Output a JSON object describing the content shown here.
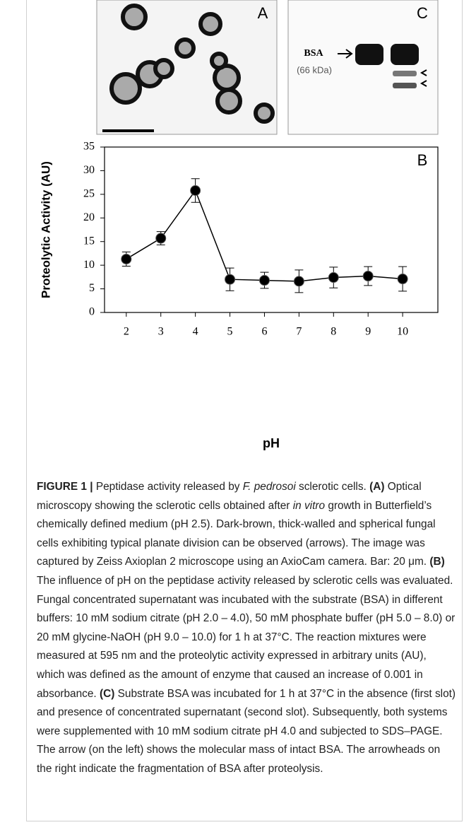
{
  "panels": {
    "a": {
      "label": "A"
    },
    "c": {
      "label": "C",
      "marker": "BSA",
      "mass": "(66 kDa)"
    }
  },
  "chart_data": {
    "type": "line",
    "annotations": [
      "B"
    ],
    "x_label": "pH",
    "y_label": "Proteolytic Activity (AU)",
    "x": [
      2,
      3,
      4,
      5,
      6,
      7,
      8,
      9,
      10
    ],
    "series": [
      {
        "color": "#000000",
        "values": [
          11.3,
          15.7,
          25.8,
          7.0,
          6.8,
          6.6,
          7.4,
          7.7,
          7.1
        ],
        "errors": [
          1.5,
          1.4,
          2.5,
          2.4,
          1.7,
          2.4,
          2.2,
          2.0,
          2.6
        ]
      }
    ],
    "xlim": [
      1.37,
      11.02
    ],
    "xticks": [
      2,
      3,
      4,
      5,
      6,
      7,
      8,
      9,
      10
    ],
    "ylim": [
      0,
      35
    ],
    "yticks": [
      0,
      5,
      10,
      15,
      20,
      25,
      30,
      35
    ]
  },
  "caption": {
    "segments": [
      "FIGURE 1 |",
      " Peptidase activity released by ",
      "F. pedrosoi",
      " sclerotic cells. ",
      "(A)",
      " Optical microscopy showing the sclerotic cells obtained after ",
      "in vitro",
      " growth in Butterfield’s chemically defined medium (pH 2.5). Dark-brown, thick-walled and spherical fungal cells exhibiting typical planate division can be observed (arrows). The image was captured by Zeiss Axioplan 2 microscope using an AxioCam camera. Bar: 20 μm. ",
      "(B)",
      " The influence of pH on the peptidase activity released by sclerotic cells was evaluated. Fungal concentrated supernatant was incubated with the substrate (BSA) in different buffers: 10 mM sodium citrate (pH 2.0 – 4.0), 50 mM phosphate buffer (pH 5.0 – 8.0) or 20 mM glycine-NaOH (pH 9.0 – 10.0) for 1 h at 37°C. The reaction mixtures were measured at 595 nm and the proteolytic activity expressed in arbitrary units (AU), which was defined as the amount of enzyme that caused an increase of 0.001 in absorbance. ",
      "(C)",
      " Substrate BSA was incubated for 1 h at 37°C in the absence (first slot) and presence of concentrated supernatant (second slot). Subsequently, both systems were supplemented with 10 mM sodium citrate pH 4.0 and subjected to SDS–PAGE. The arrow (on the left) shows the molecular mass of intact BSA. The arrowheads on the right indicate the fragmentation of BSA after proteolysis."
    ]
  }
}
